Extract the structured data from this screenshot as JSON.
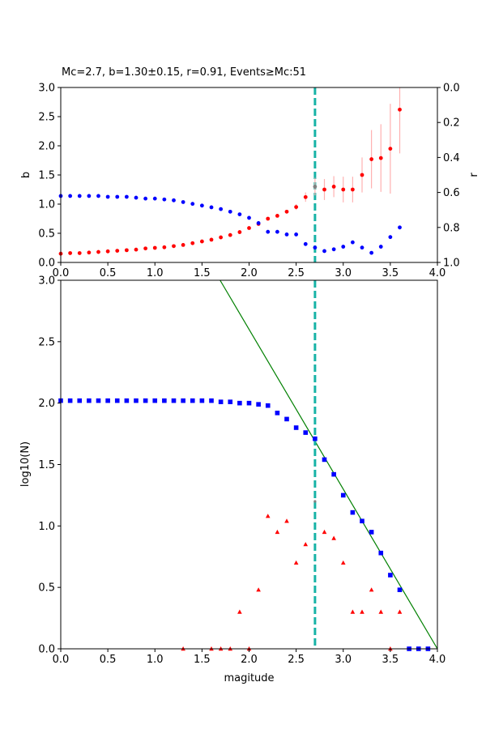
{
  "figure": {
    "title": "Mc=2.7, b=1.30±0.15, r=0.91, Events≥Mc:51"
  },
  "colors": {
    "b_series": "#ff0000",
    "r_series": "#0000ff",
    "cumulative": "#0000ff",
    "noncumulative": "#ff0000",
    "fit_line": "#008000",
    "mc_line": "#17b3a6",
    "errorbar": "#ffb0b0",
    "mc_marker": "#808080"
  },
  "chart_data": [
    {
      "type": "scatter",
      "panel": "top",
      "xlim": [
        0,
        4.0
      ],
      "ylim": [
        0,
        3.0
      ],
      "y2lim_inverted": [
        0,
        1.0
      ],
      "ylabel": "b",
      "y2label": "r",
      "x_ticks": [
        "0.0",
        "0.5",
        "1.0",
        "1.5",
        "2.0",
        "2.5",
        "3.0",
        "3.5",
        "4.0"
      ],
      "y_ticks": [
        "0.0",
        "0.5",
        "1.0",
        "1.5",
        "2.0",
        "2.5",
        "3.0"
      ],
      "y2_ticks": [
        "0.0",
        "0.2",
        "0.4",
        "0.6",
        "0.8",
        "1.0"
      ],
      "mc": 2.7,
      "series": [
        {
          "name": "b",
          "axis": "left",
          "x": [
            0.0,
            0.1,
            0.2,
            0.3,
            0.4,
            0.5,
            0.6,
            0.7,
            0.8,
            0.9,
            1.0,
            1.1,
            1.2,
            1.3,
            1.4,
            1.5,
            1.6,
            1.7,
            1.8,
            1.9,
            2.0,
            2.1,
            2.2,
            2.3,
            2.4,
            2.5,
            2.6,
            2.7,
            2.8,
            2.9,
            3.0,
            3.1,
            3.2,
            3.3,
            3.4,
            3.5,
            3.6
          ],
          "y": [
            0.15,
            0.16,
            0.16,
            0.17,
            0.18,
            0.19,
            0.2,
            0.21,
            0.22,
            0.24,
            0.25,
            0.26,
            0.28,
            0.3,
            0.33,
            0.36,
            0.39,
            0.43,
            0.47,
            0.52,
            0.59,
            0.66,
            0.75,
            0.8,
            0.87,
            0.95,
            1.12,
            1.3,
            1.25,
            1.3,
            1.25,
            1.25,
            1.5,
            1.77,
            1.79,
            1.95,
            2.62
          ],
          "err": [
            0,
            0,
            0,
            0,
            0,
            0,
            0,
            0,
            0,
            0,
            0,
            0,
            0,
            0,
            0,
            0,
            0,
            0,
            0,
            0,
            0,
            0,
            0,
            0,
            0,
            0.05,
            0.08,
            0.15,
            0.18,
            0.18,
            0.22,
            0.22,
            0.3,
            0.5,
            0.58,
            0.77,
            0.75
          ]
        },
        {
          "name": "r",
          "axis": "right",
          "x": [
            0.0,
            0.1,
            0.2,
            0.3,
            0.4,
            0.5,
            0.6,
            0.7,
            0.8,
            0.9,
            1.0,
            1.1,
            1.2,
            1.3,
            1.4,
            1.5,
            1.6,
            1.7,
            1.8,
            1.9,
            2.0,
            2.1,
            2.2,
            2.3,
            2.4,
            2.5,
            2.6,
            2.7,
            2.8,
            2.9,
            3.0,
            3.1,
            3.2,
            3.3,
            3.4,
            3.5,
            3.6
          ],
          "y": [
            0.62,
            0.62,
            0.62,
            0.62,
            0.62,
            0.625,
            0.625,
            0.625,
            0.63,
            0.635,
            0.635,
            0.64,
            0.645,
            0.655,
            0.665,
            0.675,
            0.685,
            0.695,
            0.71,
            0.725,
            0.745,
            0.775,
            0.825,
            0.825,
            0.84,
            0.84,
            0.895,
            0.915,
            0.935,
            0.925,
            0.91,
            0.885,
            0.915,
            0.945,
            0.91,
            0.855,
            0.8
          ]
        }
      ]
    },
    {
      "type": "scatter",
      "panel": "bottom",
      "xlim": [
        0,
        4.0
      ],
      "ylim": [
        0,
        3.0
      ],
      "xlabel": "magitude",
      "ylabel": "log10(N)",
      "x_ticks": [
        "0.0",
        "0.5",
        "1.0",
        "1.5",
        "2.0",
        "2.5",
        "3.0",
        "3.5",
        "4.0"
      ],
      "y_ticks": [
        "0.0",
        "0.5",
        "1.0",
        "1.5",
        "2.0",
        "2.5",
        "3.0"
      ],
      "mc": 2.7,
      "fit_line": {
        "a": 5.2,
        "b": 1.3
      },
      "series": [
        {
          "name": "cumulative",
          "marker": "square",
          "x": [
            0.0,
            0.1,
            0.2,
            0.3,
            0.4,
            0.5,
            0.6,
            0.7,
            0.8,
            0.9,
            1.0,
            1.1,
            1.2,
            1.3,
            1.4,
            1.5,
            1.6,
            1.7,
            1.8,
            1.9,
            2.0,
            2.1,
            2.2,
            2.3,
            2.4,
            2.5,
            2.6,
            2.7,
            2.8,
            2.9,
            3.0,
            3.1,
            3.2,
            3.3,
            3.4,
            3.5,
            3.6,
            3.7,
            3.8,
            3.9
          ],
          "y": [
            2.02,
            2.02,
            2.02,
            2.02,
            2.02,
            2.02,
            2.02,
            2.02,
            2.02,
            2.02,
            2.02,
            2.02,
            2.02,
            2.02,
            2.02,
            2.02,
            2.02,
            2.01,
            2.01,
            2.0,
            2.0,
            1.99,
            1.98,
            1.92,
            1.87,
            1.8,
            1.76,
            1.71,
            1.54,
            1.42,
            1.25,
            1.11,
            1.04,
            0.95,
            0.78,
            0.6,
            0.48,
            0.0,
            0.0,
            0.0
          ]
        },
        {
          "name": "non-cumulative",
          "marker": "triangle",
          "x": [
            1.3,
            1.6,
            1.7,
            1.8,
            1.9,
            2.0,
            2.1,
            2.2,
            2.3,
            2.4,
            2.5,
            2.6,
            2.8,
            2.9,
            3.0,
            3.1,
            3.2,
            3.3,
            3.4,
            3.5,
            3.6
          ],
          "y": [
            0.0,
            0.0,
            0.0,
            0.0,
            0.3,
            0.0,
            0.48,
            1.08,
            0.95,
            1.04,
            0.7,
            0.85,
            0.95,
            0.9,
            0.7,
            0.3,
            0.3,
            0.48,
            0.3,
            0.0,
            0.3
          ]
        }
      ]
    }
  ]
}
